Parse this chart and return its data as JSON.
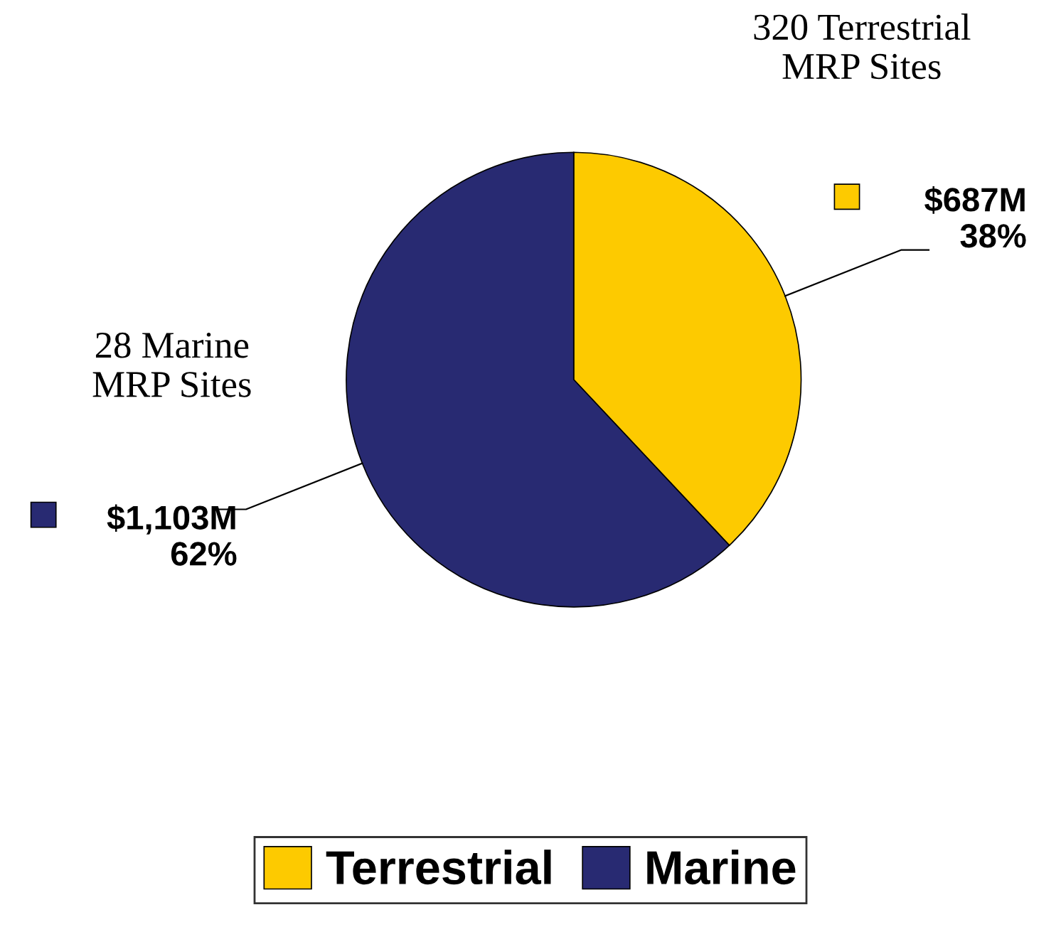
{
  "chart_data": {
    "type": "pie",
    "categories": [
      "Terrestrial",
      "Marine"
    ],
    "values": [
      38,
      62
    ],
    "colors": [
      "#fdca00",
      "#282a72"
    ],
    "value_labels": [
      "$687M\n38%",
      "$1,103M\n62%"
    ],
    "annotations": [
      "320 Terrestrial\nMRP Sites",
      "28 Marine\nMRP Sites"
    ],
    "legend": "bottom"
  }
}
